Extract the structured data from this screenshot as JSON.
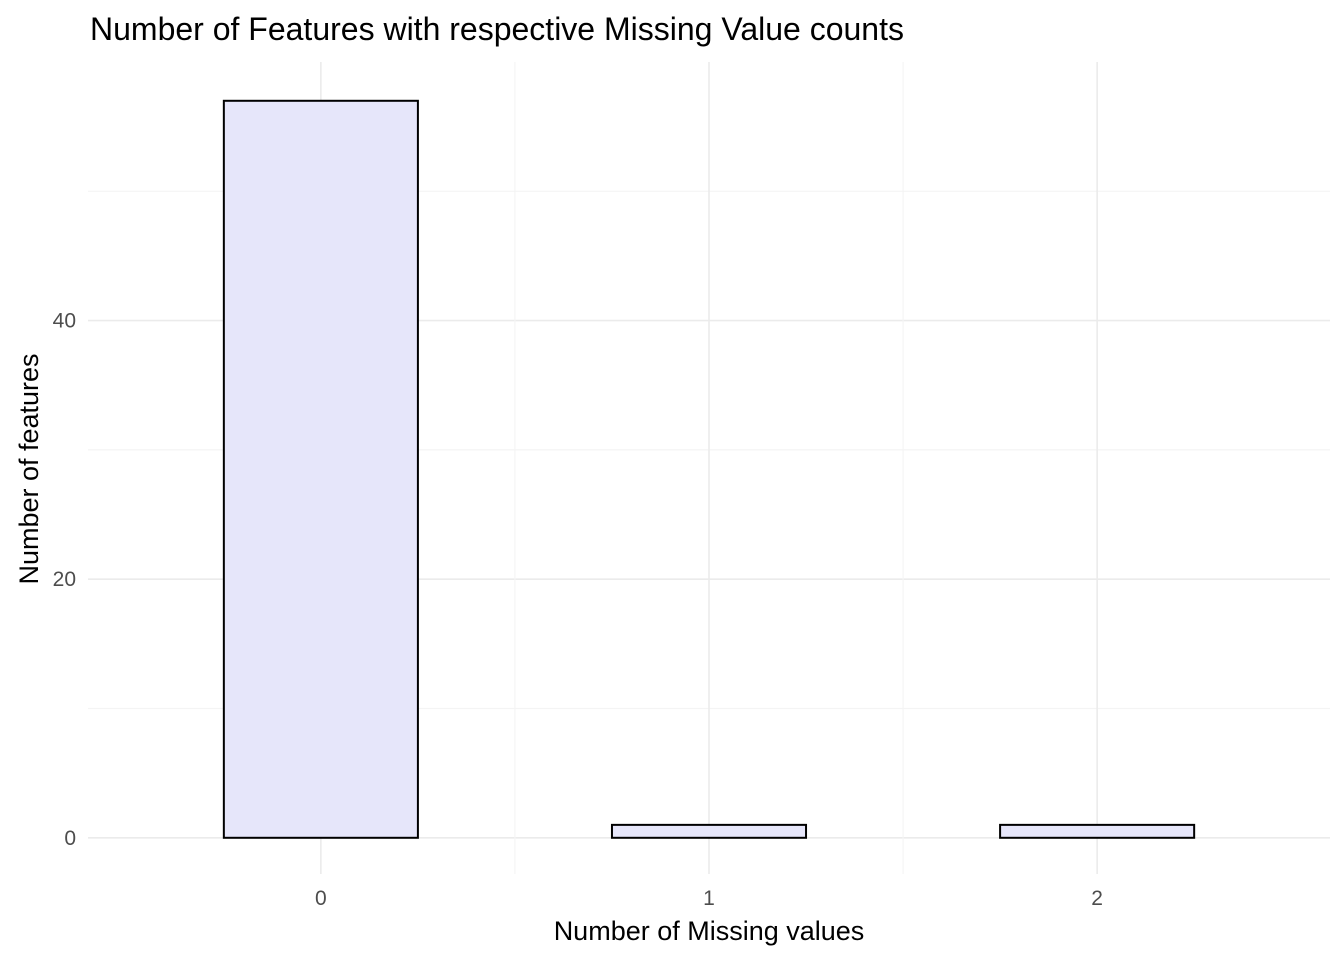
{
  "chart_data": {
    "type": "bar",
    "title": "Number of Features with respective Missing Value counts",
    "xlabel": "Number of Missing values",
    "ylabel": "Number of features",
    "categories": [
      "0",
      "1",
      "2"
    ],
    "values": [
      57,
      1,
      1
    ],
    "ylim": [
      -2.8,
      60
    ],
    "y_ticks": [
      0,
      20,
      40
    ],
    "y_tick_labels": [
      "0",
      "20",
      "40"
    ],
    "bar_fill": "#e6e6fa",
    "bar_outline": "#000000",
    "grid": true,
    "legend": "none"
  }
}
